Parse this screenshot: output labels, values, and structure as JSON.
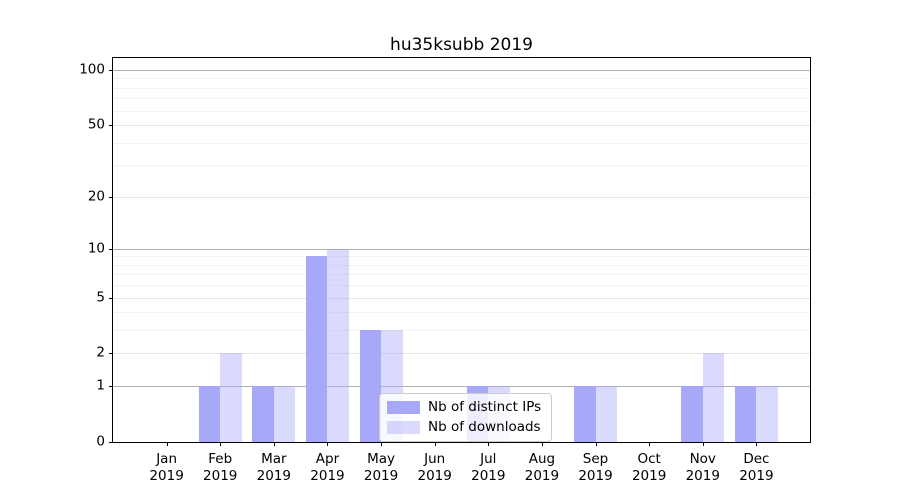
{
  "chart_data": {
    "type": "bar",
    "title": "hu35ksubb 2019",
    "xlabel": "",
    "ylabel": "",
    "categories": [
      "Jan 2019",
      "Feb 2019",
      "Mar 2019",
      "Apr 2019",
      "May 2019",
      "Jun 2019",
      "Jul 2019",
      "Aug 2019",
      "Sep 2019",
      "Oct 2019",
      "Nov 2019",
      "Dec 2019"
    ],
    "series": [
      {
        "name": "Nb of distinct IPs",
        "color": "#a8a8f8",
        "values": [
          0,
          1,
          1,
          9,
          3,
          0,
          1,
          0,
          1,
          0,
          1,
          1
        ]
      },
      {
        "name": "Nb of downloads",
        "color": "rgba(168,168,248,0.42)",
        "values": [
          0,
          2,
          1,
          10,
          3,
          0,
          1,
          0,
          1,
          0,
          2,
          1
        ]
      }
    ],
    "yticks": [
      0,
      1,
      2,
      5,
      10,
      20,
      50,
      100
    ],
    "ylim": [
      0,
      116
    ],
    "yscale": "log1p",
    "grid": "horizontal",
    "legend_location": "lower center"
  },
  "colors": {
    "bar_dark": "#a8a8f8",
    "bar_light": "#dadaf9",
    "grid_major": "#b0b0b0",
    "grid_minor": "#f2f2f2",
    "axis": "#000000",
    "legend_border": "#cccccc"
  }
}
